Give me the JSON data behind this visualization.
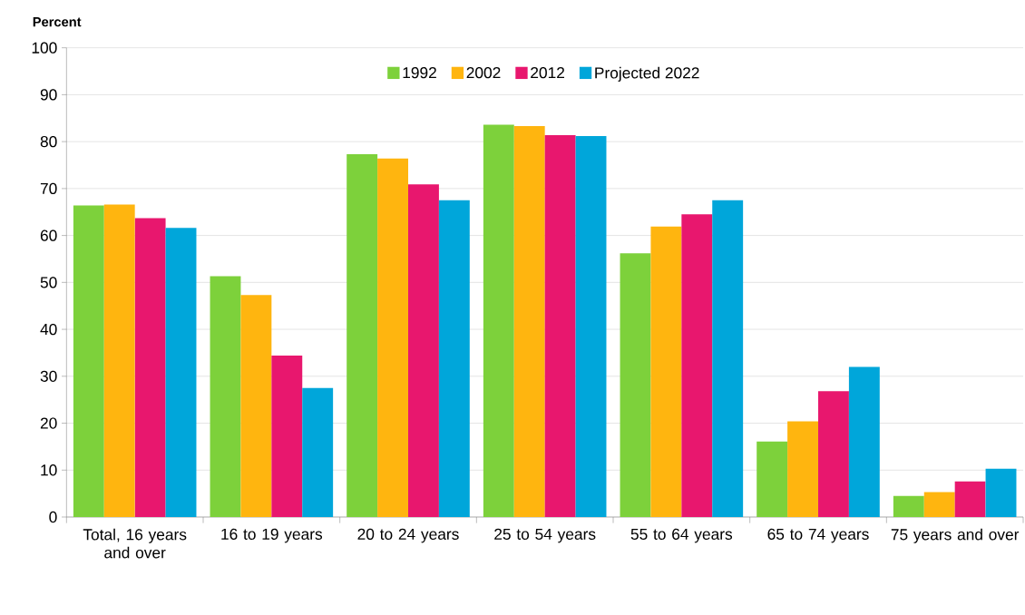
{
  "chart_data": {
    "type": "bar",
    "ylabel": "Percent",
    "categories": [
      "Total, 16 years and over",
      "16 to 19 years",
      "20 to 24 years",
      "25 to 54 years",
      "55 to 64 years",
      "65 to 74 years",
      "75 years and over"
    ],
    "series": [
      {
        "name": "1992",
        "color": "#7dd13b",
        "values": [
          66.4,
          51.3,
          77.3,
          83.6,
          56.2,
          16.1,
          4.5
        ]
      },
      {
        "name": "2002",
        "color": "#ffb50f",
        "values": [
          66.6,
          47.3,
          76.4,
          83.3,
          61.9,
          20.4,
          5.3
        ]
      },
      {
        "name": "2012",
        "color": "#e8176e",
        "values": [
          63.7,
          34.4,
          70.9,
          81.4,
          64.5,
          26.8,
          7.6
        ]
      },
      {
        "name": "Projected 2022",
        "color": "#00a6da",
        "values": [
          61.6,
          27.5,
          67.5,
          81.2,
          67.5,
          32.0,
          10.3
        ]
      }
    ],
    "ylim": [
      0,
      100
    ],
    "yticks": [
      0,
      10,
      20,
      30,
      40,
      50,
      60,
      70,
      80,
      90,
      100
    ],
    "grid": "y",
    "legend": "top"
  }
}
